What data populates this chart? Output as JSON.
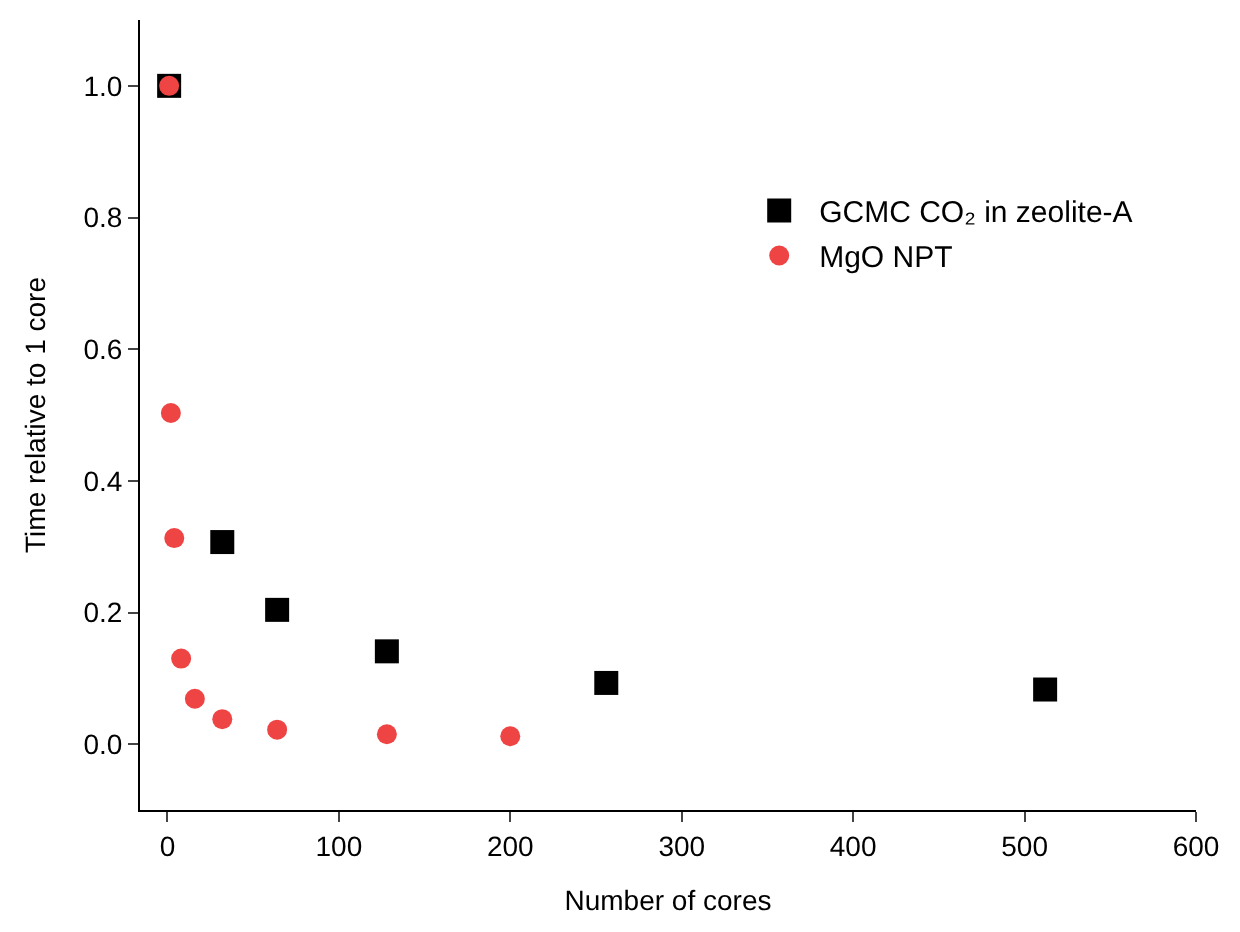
{
  "chart_data": {
    "type": "scatter",
    "xlabel": "Number of cores",
    "ylabel": "Time relative to 1 core",
    "xlim": [
      -16,
      600
    ],
    "xticks": [
      0,
      100,
      200,
      300,
      400,
      500,
      600
    ],
    "ylim": [
      -0.1,
      1.1
    ],
    "yticks": [
      {
        "value": 0,
        "label": "0.0"
      },
      {
        "value": 0.2,
        "label": "0.2"
      },
      {
        "value": 0.4,
        "label": "0.4"
      },
      {
        "value": 0.6,
        "label": "0.6"
      },
      {
        "value": 0.8,
        "label": "0.8"
      },
      {
        "value": 1.0,
        "label": "1.0"
      }
    ],
    "legend": "top right",
    "series": [
      {
        "name": "GCMC CO₂ in zeolite-A",
        "color": "#000000",
        "marker": "square",
        "x": [
          1,
          32,
          64,
          128,
          256,
          512
        ],
        "values": [
          1.0,
          0.307,
          0.204,
          0.141,
          0.093,
          0.083
        ]
      },
      {
        "name": "MgO NPT",
        "color": "#ef4444",
        "marker": "circle",
        "x": [
          1,
          2,
          4,
          8,
          16,
          32,
          64,
          128,
          200
        ],
        "values": [
          1.0,
          0.503,
          0.313,
          0.13,
          0.069,
          0.038,
          0.022,
          0.015,
          0.012
        ]
      }
    ]
  }
}
